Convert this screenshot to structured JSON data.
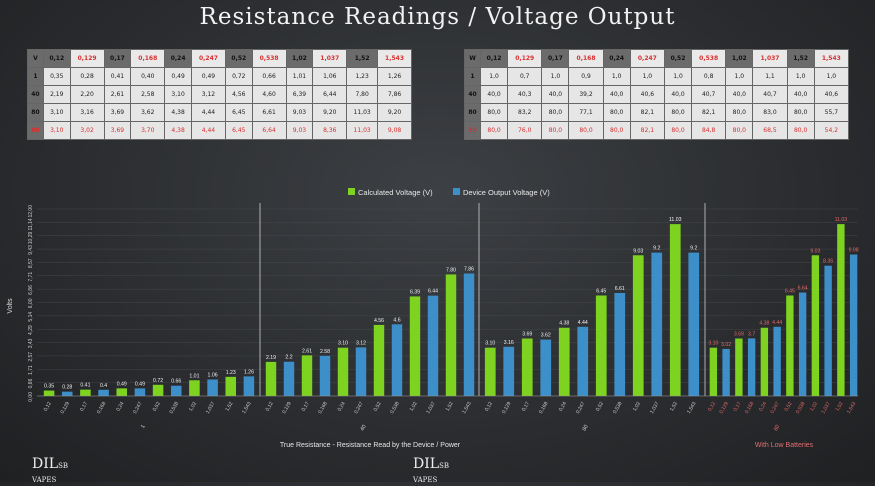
{
  "page_title": "Resistance Readings / Voltage Output",
  "table_left": {
    "headers": [
      "V",
      "0,12",
      "0,129",
      "0,17",
      "0,168",
      "0,24",
      "0,247",
      "0,52",
      "0,538",
      "1,02",
      "1,037",
      "1,52",
      "1,543"
    ],
    "header_red": [
      false,
      false,
      true,
      false,
      true,
      false,
      true,
      false,
      true,
      false,
      true,
      false,
      true
    ],
    "rows": [
      {
        "label": "1",
        "red": false,
        "cells": [
          "0,35",
          "0,28",
          "0,41",
          "0,40",
          "0,49",
          "0,49",
          "0,72",
          "0,66",
          "1,01",
          "1,06",
          "1,23",
          "1,26"
        ]
      },
      {
        "label": "40",
        "red": false,
        "cells": [
          "2,19",
          "2,20",
          "2,61",
          "2,58",
          "3,10",
          "3,12",
          "4,56",
          "4,60",
          "6,39",
          "6,44",
          "7,80",
          "7,86"
        ]
      },
      {
        "label": "80",
        "red": false,
        "cells": [
          "3,10",
          "3,16",
          "3,69",
          "3,62",
          "4,38",
          "4,44",
          "6,45",
          "6,61",
          "9,03",
          "9,20",
          "11,03",
          "9,20"
        ]
      },
      {
        "label": "80",
        "red": true,
        "cells": [
          "3,10",
          "3,02",
          "3,69",
          "3,70",
          "4,38",
          "4,44",
          "6,45",
          "6,64",
          "9,03",
          "8,36",
          "11,03",
          "9,08"
        ]
      }
    ]
  },
  "table_right": {
    "headers": [
      "W",
      "0,12",
      "0,129",
      "0,17",
      "0,168",
      "0,24",
      "0,247",
      "0,52",
      "0,538",
      "1,02",
      "1,037",
      "1,52",
      "1,543"
    ],
    "header_red": [
      false,
      false,
      true,
      false,
      true,
      false,
      true,
      false,
      true,
      false,
      true,
      false,
      true
    ],
    "rows": [
      {
        "label": "1",
        "red": false,
        "cells": [
          "1,0",
          "0,7",
          "1,0",
          "0,9",
          "1,0",
          "1,0",
          "1,0",
          "0,8",
          "1,0",
          "1,1",
          "1,0",
          "1,0"
        ]
      },
      {
        "label": "40",
        "red": false,
        "cells": [
          "40,0",
          "40,3",
          "40,0",
          "39,2",
          "40,0",
          "40,6",
          "40,0",
          "40,7",
          "40,0",
          "40,7",
          "40,0",
          "40,6"
        ]
      },
      {
        "label": "80",
        "red": false,
        "cells": [
          "80,0",
          "83,2",
          "80,0",
          "77,1",
          "80,0",
          "82,1",
          "80,0",
          "82,1",
          "80,0",
          "83,0",
          "80,0",
          "55,7"
        ]
      },
      {
        "label": "80",
        "red": true,
        "cells": [
          "80,0",
          "76,0",
          "80,0",
          "80,0",
          "80,0",
          "82,1",
          "80,0",
          "84,8",
          "80,0",
          "68,5",
          "80,0",
          "54,2"
        ]
      }
    ]
  },
  "chart_data": {
    "type": "bar",
    "ylabel": "Volts",
    "yticks": [
      "0,00",
      "0,86",
      "1,71",
      "2,57",
      "3,43",
      "4,29",
      "5,14",
      "6,00",
      "6,86",
      "7,71",
      "8,57",
      "9,43",
      "10,29",
      "11,14",
      "12,00"
    ],
    "ylim": [
      0,
      12
    ],
    "xlabel": "True Resistance - Resistance Read by the Device / Power",
    "low_battery_label": "With Low Batteries",
    "series": [
      {
        "name": "Calculated Voltage (V)",
        "color": "#7ed321"
      },
      {
        "name": "Device Output Voltage (V)",
        "color": "#3d8fc9"
      }
    ],
    "panels": [
      {
        "group_label": "1",
        "pairs": [
          {
            "a": "0,12",
            "b": "0,129",
            "va": 0.35,
            "vb": 0.28,
            "la": "0.35",
            "lb": "0.28"
          },
          {
            "a": "0,17",
            "b": "0,168",
            "va": 0.41,
            "vb": 0.4,
            "la": "0.41",
            "lb": "0.4"
          },
          {
            "a": "0,24",
            "b": "0,247",
            "va": 0.49,
            "vb": 0.49,
            "la": "0.49",
            "lb": "0.49"
          },
          {
            "a": "0,52",
            "b": "0,538",
            "va": 0.72,
            "vb": 0.66,
            "la": "0.72",
            "lb": "0.66"
          },
          {
            "a": "1,02",
            "b": "1,037",
            "va": 1.01,
            "vb": 1.06,
            "la": "1.01",
            "lb": "1.06"
          },
          {
            "a": "1,52",
            "b": "1,543",
            "va": 1.23,
            "vb": 1.26,
            "la": "1.23",
            "lb": "1.26"
          }
        ]
      },
      {
        "group_label": "40",
        "pairs": [
          {
            "a": "0,12",
            "b": "0,129",
            "va": 2.19,
            "vb": 2.2,
            "la": "2.19",
            "lb": "2.2"
          },
          {
            "a": "0,17",
            "b": "0,168",
            "va": 2.61,
            "vb": 2.58,
            "la": "2.61",
            "lb": "2.58"
          },
          {
            "a": "0,24",
            "b": "0,247",
            "va": 3.1,
            "vb": 3.12,
            "la": "3.10",
            "lb": "3.12"
          },
          {
            "a": "0,52",
            "b": "0,538",
            "va": 4.56,
            "vb": 4.6,
            "la": "4.56",
            "lb": "4.6"
          },
          {
            "a": "1,02",
            "b": "1,037",
            "va": 6.39,
            "vb": 6.44,
            "la": "6.39",
            "lb": "6.44"
          },
          {
            "a": "1,52",
            "b": "1,543",
            "va": 7.8,
            "vb": 7.86,
            "la": "7.80",
            "lb": "7.86"
          }
        ]
      },
      {
        "group_label": "80",
        "pairs": [
          {
            "a": "0,12",
            "b": "0,129",
            "va": 3.1,
            "vb": 3.16,
            "la": "3.10",
            "lb": "3.16"
          },
          {
            "a": "0,17",
            "b": "0,168",
            "va": 3.69,
            "vb": 3.62,
            "la": "3.69",
            "lb": "3.62"
          },
          {
            "a": "0,24",
            "b": "0,247",
            "va": 4.38,
            "vb": 4.44,
            "la": "4.38",
            "lb": "4.44"
          },
          {
            "a": "0,52",
            "b": "0,538",
            "va": 6.45,
            "vb": 6.61,
            "la": "6.45",
            "lb": "6.61"
          },
          {
            "a": "1,02",
            "b": "1,037",
            "va": 9.03,
            "vb": 9.2,
            "la": "9.03",
            "lb": "9.2"
          },
          {
            "a": "1,52",
            "b": "1,543",
            "va": 11.03,
            "vb": 9.2,
            "la": "11.03",
            "lb": "9.2"
          }
        ]
      },
      {
        "group_label": "80",
        "pairs": [
          {
            "a": "0,12",
            "b": "0,129",
            "va": 3.1,
            "vb": 3.02,
            "la": "3.10",
            "lb": "3.02"
          },
          {
            "a": "0,17",
            "b": "0,168",
            "va": 3.69,
            "vb": 3.7,
            "la": "3.69",
            "lb": "3.7"
          },
          {
            "a": "0,24",
            "b": "0,247",
            "va": 4.38,
            "vb": 4.44,
            "la": "4.38",
            "lb": "4.44"
          },
          {
            "a": "0,52",
            "b": "0,538",
            "va": 6.45,
            "vb": 6.64,
            "la": "6.45",
            "lb": "6.64"
          },
          {
            "a": "1,02",
            "b": "1,037",
            "va": 9.03,
            "vb": 8.36,
            "la": "9.03",
            "lb": "8.36"
          },
          {
            "a": "1,52",
            "b": "1,543",
            "va": 11.03,
            "vb": 9.08,
            "la": "11.03",
            "lb": "9.08"
          }
        ]
      }
    ]
  },
  "logos": {
    "brand": "DIL",
    "brand_sup": "SB",
    "brand_sub": "VAPES"
  }
}
